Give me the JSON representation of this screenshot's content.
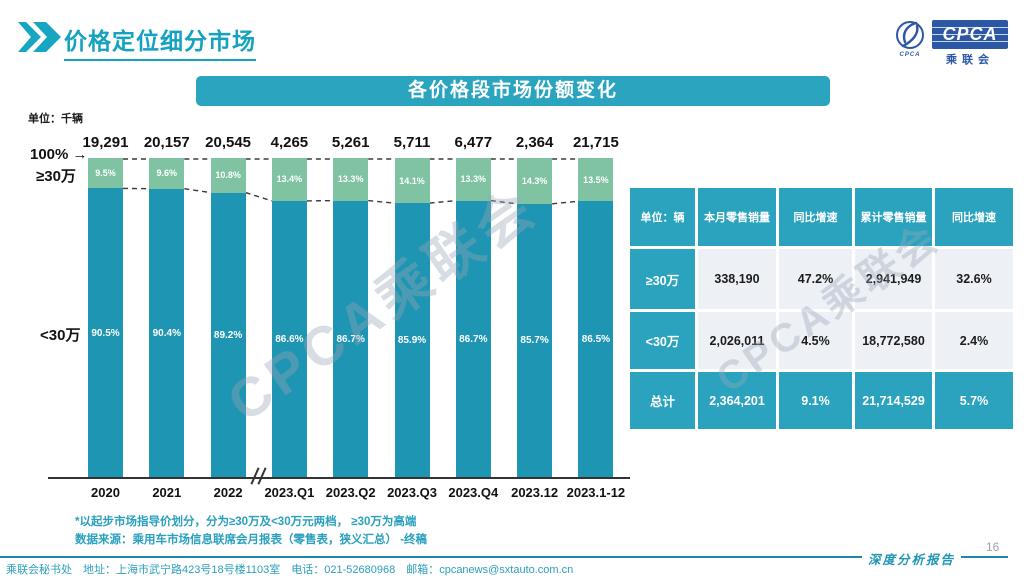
{
  "header": {
    "title": "价格定位细分市场",
    "logo": {
      "cpca": "CPCA",
      "cn": "乘联会",
      "circle_caption": "CPCA"
    }
  },
  "banner": {
    "title": "各价格段市场份额变化"
  },
  "chart": {
    "unit_label": "单位：千辆",
    "axis_top": "100% →",
    "axis_ge30": "≥30万",
    "axis_lt30": "<30万",
    "watermark": "CPCA乘联会"
  },
  "chart_data": {
    "type": "bar",
    "stacked": true,
    "title": "各价格段市场份额变化",
    "unit": "千辆",
    "ylim": [
      0,
      100
    ],
    "axis_break_after": "2022",
    "categories": [
      "2020",
      "2021",
      "2022",
      "2023.Q1",
      "2023.Q2",
      "2023.Q3",
      "2023.Q4",
      "2023.12",
      "2023.1-12"
    ],
    "totals_thousands": [
      "19,291",
      "20,157",
      "20,545",
      "4,265",
      "5,261",
      "5,711",
      "6,477",
      "2,364",
      "21,715"
    ],
    "series": [
      {
        "name": "≥30万",
        "color": "#7fc3a2",
        "values": [
          9.5,
          9.6,
          10.8,
          13.4,
          13.3,
          14.1,
          13.3,
          14.3,
          13.5
        ]
      },
      {
        "name": "<30万",
        "color": "#1e95b2",
        "values": [
          90.5,
          90.4,
          89.2,
          86.6,
          86.7,
          85.9,
          86.7,
          85.7,
          86.5
        ]
      }
    ]
  },
  "table": {
    "headers": [
      "单位：辆",
      "本月零售销量",
      "同比增速",
      "累计零售销量",
      "同比增速"
    ],
    "rows": [
      {
        "label": "≥30万",
        "cells": [
          "338,190",
          "47.2%",
          "2,941,949",
          "32.6%"
        ],
        "highlight": false
      },
      {
        "label": "<30万",
        "cells": [
          "2,026,011",
          "4.5%",
          "18,772,580",
          "2.4%"
        ],
        "highlight": false
      },
      {
        "label": "总计",
        "cells": [
          "2,364,201",
          "9.1%",
          "21,714,529",
          "5.7%"
        ],
        "highlight": true
      }
    ]
  },
  "notes": {
    "line1": "*以起步市场指导价划分，分为≥30万及<30万元两档，  ≥30万为高端",
    "line2": "数据来源：乘用车市场信息联席会月报表（零售表，狭义汇总）  -终稿"
  },
  "footer": {
    "address": "乘联会秘书处　地址：上海市武宁路423号18号楼1103室　电话：021-52680968　邮箱：cpcanews@sxtauto.com.cn",
    "report_label": "深度分析报告",
    "page_number": "16"
  },
  "colors": {
    "accent_teal": "#14a2c0",
    "banner_teal": "#2ba4c0",
    "table_teal": "#2ba3bf",
    "bar_teal": "#1e95b2",
    "bar_green": "#7fc3a2",
    "logo_blue": "#2b57a5",
    "cell_bg": "#edf1f6"
  }
}
